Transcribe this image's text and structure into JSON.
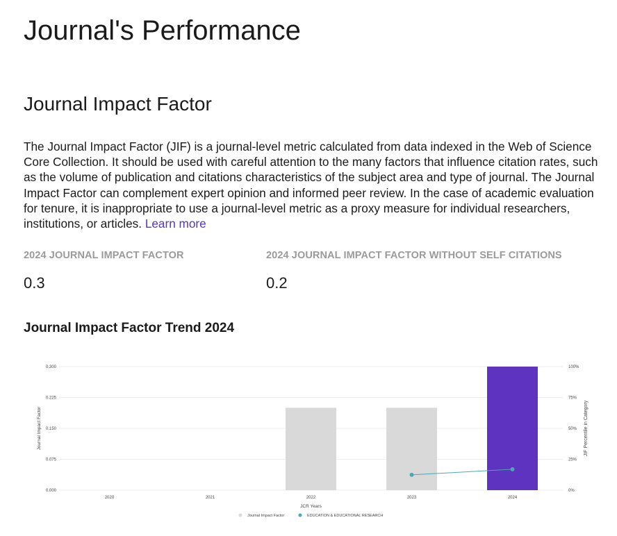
{
  "page_title": "Journal's Performance",
  "section_title": "Journal Impact Factor",
  "description": "The Journal Impact Factor (JIF) is a journal-level metric calculated from data indexed in the Web of Science Core Collection. It should be used with careful attention to the many factors that influence citation rates, such as the volume of publication and citations characteristics of the subject area and type of journal. The Journal Impact Factor can complement expert opinion and informed peer review. In the case of academic evaluation for tenure, it is inappropriate to use a journal-level metric as a proxy measure for individual researchers, institutions, or articles.",
  "learn_more": "Learn more",
  "metrics": [
    {
      "label": "2024 JOURNAL IMPACT FACTOR",
      "value": "0.3"
    },
    {
      "label": "2024 JOURNAL IMPACT FACTOR WITHOUT SELF CITATIONS",
      "value": "0.2"
    }
  ],
  "trend_title": "Journal Impact Factor Trend 2024",
  "colors": {
    "bar": "#d9d9d9",
    "highlight": "#5e33bf",
    "line": "#4aa8b8"
  },
  "chart_data": {
    "type": "bar",
    "categories": [
      "2020",
      "2021",
      "2022",
      "2023",
      "2024"
    ],
    "series": [
      {
        "name": "Journal Impact Factor",
        "values": [
          null,
          null,
          0.2,
          0.2,
          0.3
        ],
        "axis": "left",
        "kind": "bar"
      },
      {
        "name": "EDUCATION & EDUCATIONAL RESEARCH",
        "values": [
          null,
          null,
          null,
          12.4,
          16.9
        ],
        "axis": "right",
        "kind": "line"
      }
    ],
    "xlabel": "JCR Years",
    "ylabel": "Journal Impact Factor",
    "y2label": "JIF Percentile in Category",
    "ylim": [
      0,
      0.3
    ],
    "y2lim": [
      0,
      100
    ],
    "yticks": [
      "0.000",
      "0.075",
      "0.150",
      "0.225",
      "0.300"
    ],
    "y2ticks": [
      "0%",
      "25%",
      "50%",
      "75%",
      "100%"
    ],
    "grid": true,
    "legend": "bottom-center"
  }
}
